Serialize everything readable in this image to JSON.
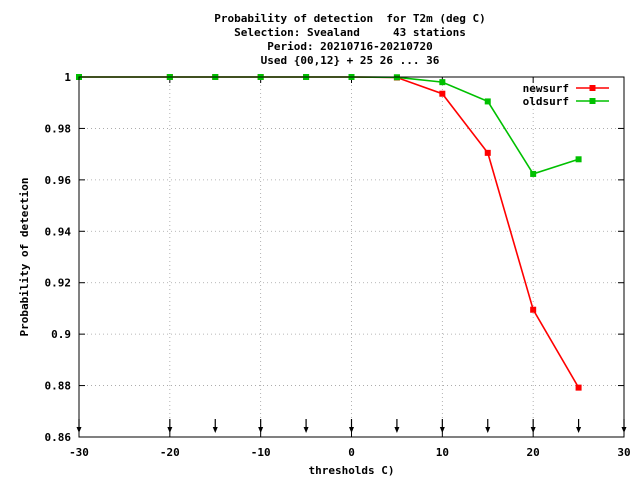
{
  "chart_data": {
    "type": "line",
    "title_lines": [
      "Probability of detection  for T2m (deg C)",
      "Selection: Svealand     43 stations",
      "Period: 20210716-20210720",
      "Used {00,12} + 25 26 ... 36"
    ],
    "xlabel": "thresholds C)",
    "ylabel": "Probability of detection",
    "xlim": [
      -30,
      30
    ],
    "ylim": [
      0.86,
      1.0
    ],
    "x_ticks": [
      -30,
      -20,
      -10,
      0,
      10,
      20,
      30
    ],
    "x_tick_labels": [
      "-30",
      "-20",
      "-10",
      "0",
      "10",
      "20",
      "30"
    ],
    "y_ticks": [
      0.86,
      0.88,
      0.9,
      0.92,
      0.94,
      0.96,
      0.98,
      1.0
    ],
    "y_tick_labels": [
      "0.86",
      "0.88",
      "0.9",
      "0.92",
      "0.94",
      "0.96",
      "0.98",
      "1"
    ],
    "grid": true,
    "legend_position": "top-right",
    "threshold_markers": [
      -30,
      -20,
      -15,
      -10,
      -5,
      0,
      5,
      10,
      15,
      20,
      25,
      30
    ],
    "series": [
      {
        "name": "newsurf",
        "color": "#ff0000",
        "x": [
          -30,
          -20,
          -15,
          -10,
          -5,
          0,
          5,
          10,
          15,
          20,
          25
        ],
        "values": [
          1.0,
          1.0,
          1.0,
          1.0,
          1.0,
          1.0,
          0.9998,
          0.9935,
          0.9705,
          0.9095,
          0.8792
        ]
      },
      {
        "name": "oldsurf",
        "color": "#00c000",
        "x": [
          -30,
          -20,
          -15,
          -10,
          -5,
          0,
          5,
          10,
          15,
          20,
          25
        ],
        "values": [
          1.0,
          1.0,
          1.0,
          1.0,
          1.0,
          1.0,
          0.9999,
          0.998,
          0.9905,
          0.9623,
          0.968
        ]
      }
    ]
  }
}
